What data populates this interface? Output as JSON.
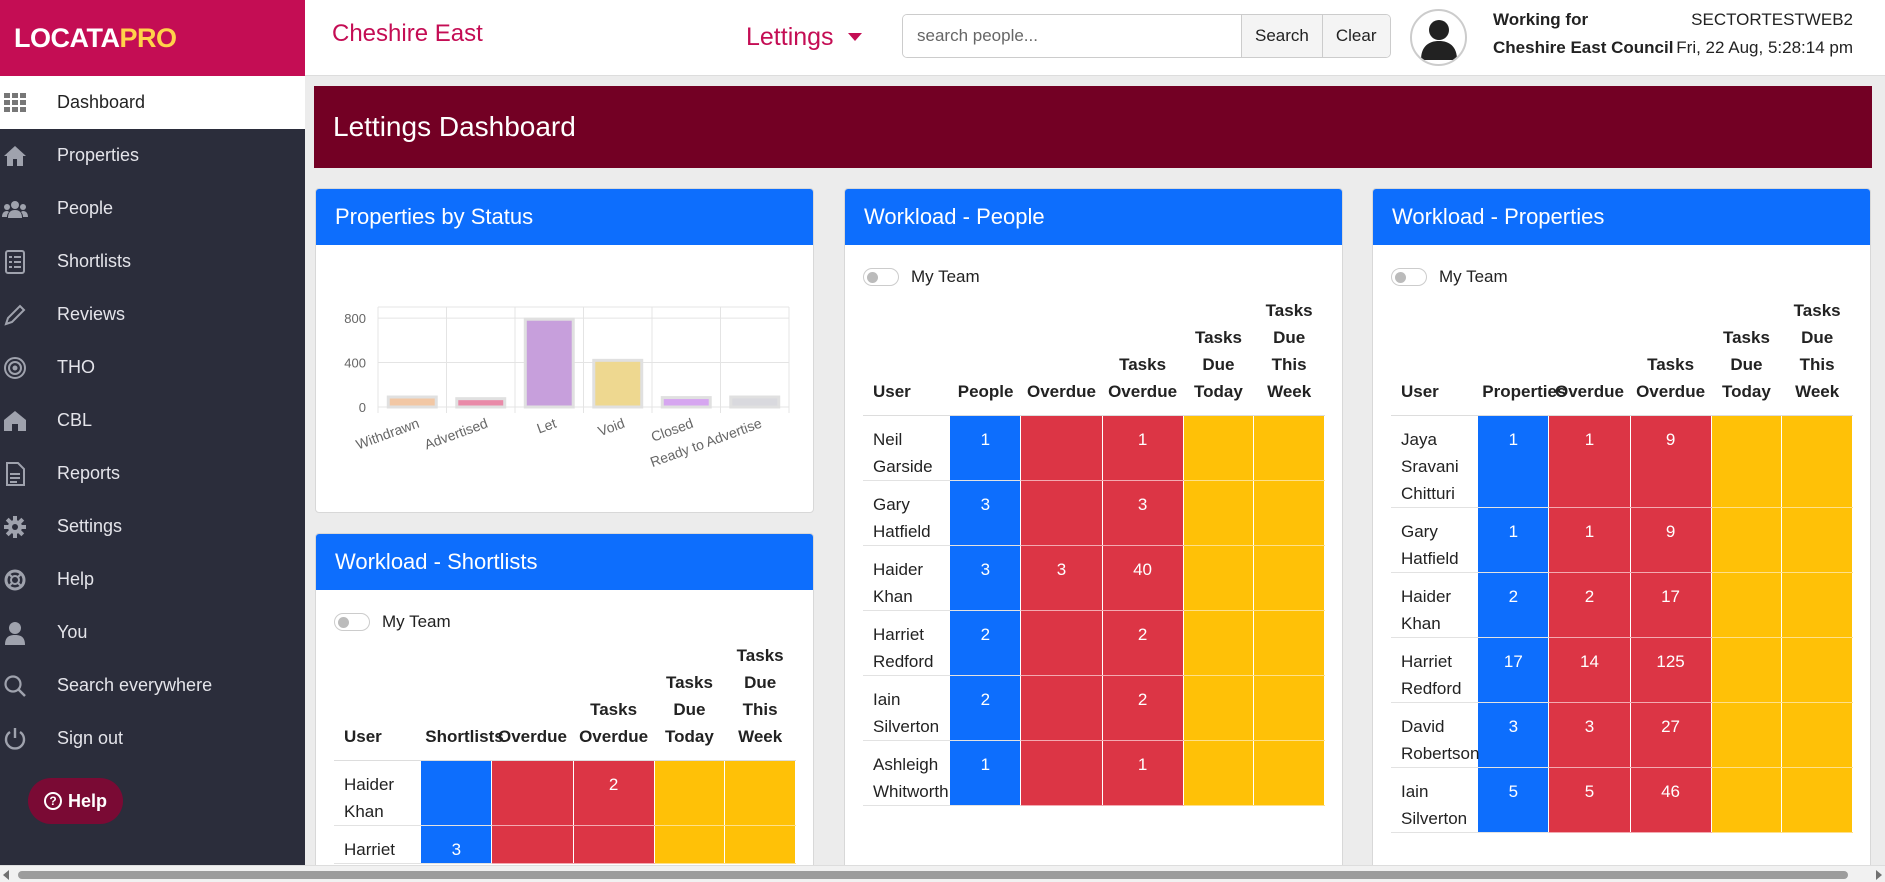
{
  "app": {
    "logo_main": "LOCATA",
    "logo_accent": "PRO"
  },
  "sidebar": {
    "items": [
      {
        "label": "Dashboard",
        "icon": "grid-icon"
      },
      {
        "label": "Properties",
        "icon": "home-icon"
      },
      {
        "label": "People",
        "icon": "people-icon"
      },
      {
        "label": "Shortlists",
        "icon": "list-icon"
      },
      {
        "label": "Reviews",
        "icon": "pencil-icon"
      },
      {
        "label": "THO",
        "icon": "target-icon"
      },
      {
        "label": "CBL",
        "icon": "house-icon"
      },
      {
        "label": "Reports",
        "icon": "document-icon"
      },
      {
        "label": "Settings",
        "icon": "gear-icon"
      },
      {
        "label": "Help",
        "icon": "lifebuoy-icon"
      },
      {
        "label": "You",
        "icon": "user-icon"
      },
      {
        "label": "Search everywhere",
        "icon": "search-icon"
      },
      {
        "label": "Sign out",
        "icon": "power-icon"
      }
    ],
    "active_index": 0,
    "help_button": "Help"
  },
  "header": {
    "org_name": "Cheshire East",
    "module": "Lettings",
    "search_placeholder": "search people...",
    "search_button": "Search",
    "clear_button": "Clear",
    "working_for_label": "Working for",
    "working_for_org": "Cheshire East Council",
    "server": "SECTORTESTWEB2",
    "datetime": "Fri, 22 Aug, 5:28:14 pm"
  },
  "page": {
    "title": "Lettings Dashboard"
  },
  "colors": {
    "brand": "#c40d54",
    "title_bar": "#730024",
    "card_header": "#0d6efd",
    "blue": "#0d6efd",
    "red": "#dc3545",
    "yellow": "#ffc107"
  },
  "cards": {
    "status": {
      "title": "Properties by Status"
    },
    "shortlists": {
      "title": "Workload - Shortlists",
      "toggle_label": "My Team",
      "headers": [
        "User",
        "Shortlists",
        "Overdue",
        "Tasks Overdue",
        "Tasks Due Today",
        "Tasks Due This Week"
      ],
      "rows": [
        {
          "user": "Haider Khan",
          "cells": [
            "",
            "",
            "2",
            "",
            ""
          ]
        },
        {
          "user": "Harriet",
          "cells": [
            "3",
            "",
            "",
            "",
            ""
          ]
        }
      ]
    },
    "people": {
      "title": "Workload - People",
      "toggle_label": "My Team",
      "headers": [
        "User",
        "People",
        "Overdue",
        "Tasks Overdue",
        "Tasks Due Today",
        "Tasks Due This Week"
      ],
      "rows": [
        {
          "user": "Neil Garside",
          "cells": [
            "1",
            "",
            "1",
            "",
            ""
          ]
        },
        {
          "user": "Gary Hatfield",
          "cells": [
            "3",
            "",
            "3",
            "",
            ""
          ]
        },
        {
          "user": "Haider Khan",
          "cells": [
            "3",
            "3",
            "40",
            "",
            ""
          ]
        },
        {
          "user": "Harriet Redford",
          "cells": [
            "2",
            "",
            "2",
            "",
            ""
          ]
        },
        {
          "user": "Iain Silverton",
          "cells": [
            "2",
            "",
            "2",
            "",
            ""
          ]
        },
        {
          "user": "Ashleigh Whitworth",
          "cells": [
            "1",
            "",
            "1",
            "",
            ""
          ]
        }
      ]
    },
    "properties": {
      "title": "Workload - Properties",
      "toggle_label": "My Team",
      "headers": [
        "User",
        "Properties",
        "Overdue",
        "Tasks Overdue",
        "Tasks Due Today",
        "Tasks Due This Week"
      ],
      "rows": [
        {
          "user": "Jaya Sravani Chitturi",
          "cells": [
            "1",
            "1",
            "9",
            "",
            ""
          ]
        },
        {
          "user": "Gary Hatfield",
          "cells": [
            "1",
            "1",
            "9",
            "",
            ""
          ]
        },
        {
          "user": "Haider Khan",
          "cells": [
            "2",
            "2",
            "17",
            "",
            ""
          ]
        },
        {
          "user": "Harriet Redford",
          "cells": [
            "17",
            "14",
            "125",
            "",
            ""
          ]
        },
        {
          "user": "David Robertson",
          "cells": [
            "3",
            "3",
            "27",
            "",
            ""
          ]
        },
        {
          "user": "Iain Silverton",
          "cells": [
            "5",
            "5",
            "46",
            "",
            ""
          ]
        }
      ]
    }
  },
  "chart_data": {
    "type": "bar",
    "categories": [
      "Withdrawn",
      "Advertised",
      "Let",
      "Void",
      "Closed",
      "Ready to Advertise"
    ],
    "values": [
      90,
      75,
      790,
      420,
      85,
      90
    ],
    "colors": [
      "#f2c7a4",
      "#e98aa8",
      "#c79fdc",
      "#eed890",
      "#d6a6f0",
      "#d9d9de"
    ],
    "yticks": [
      0,
      400,
      800
    ],
    "ylim": [
      0,
      900
    ],
    "grid": true,
    "legend": "none"
  }
}
